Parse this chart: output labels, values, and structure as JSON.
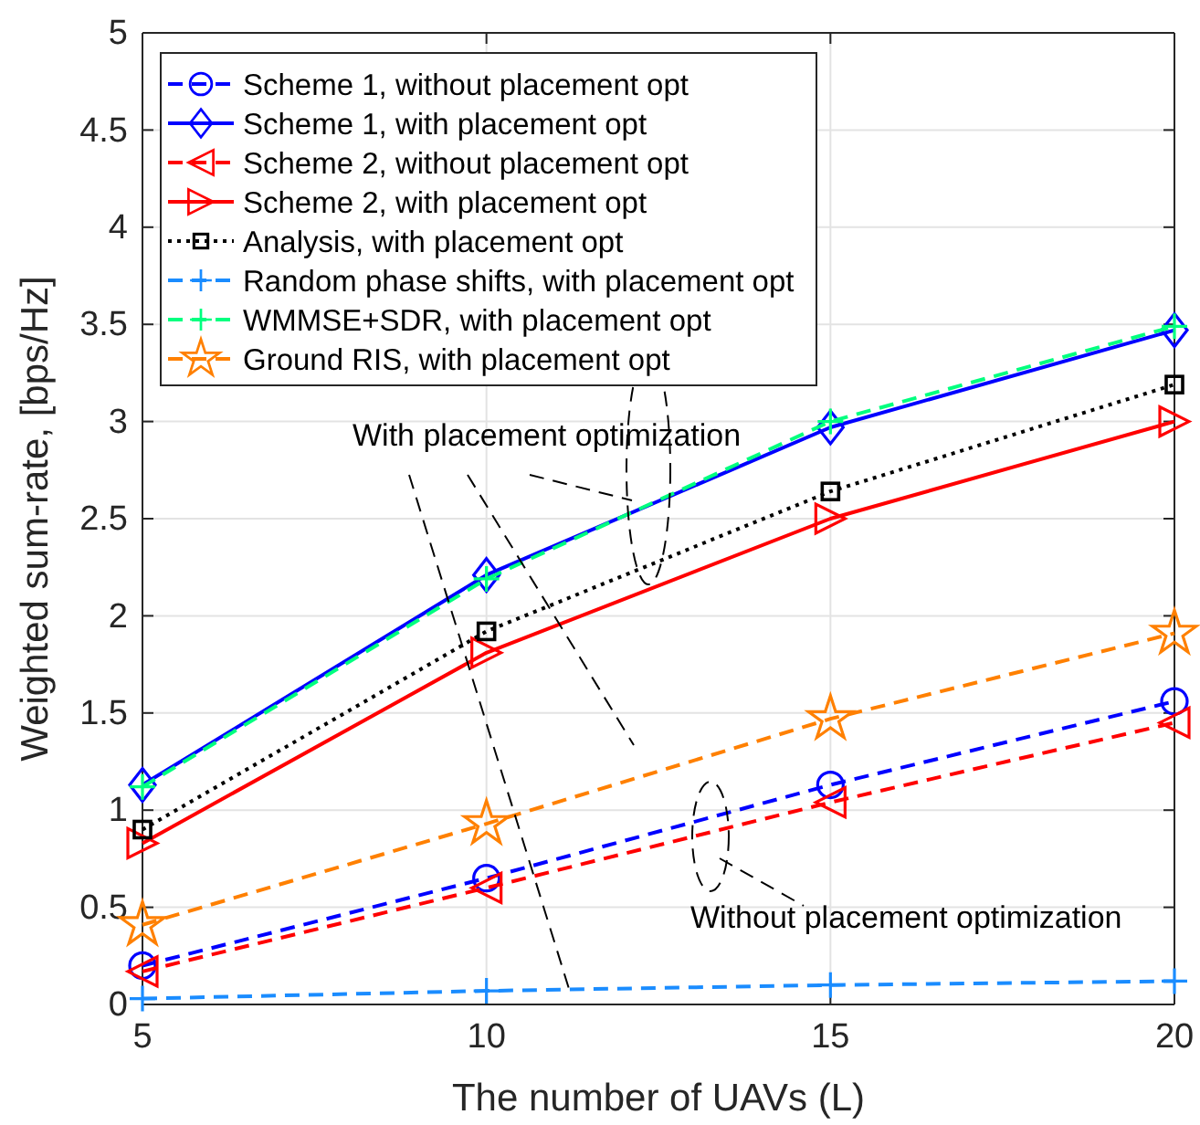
{
  "chart_data": {
    "type": "line",
    "xlabel": "The number of UAVs (L)",
    "ylabel": "Weighted sum-rate, [bps/Hz]",
    "x": [
      5,
      10,
      15,
      20
    ],
    "xlim": [
      5,
      20
    ],
    "xticks": [
      5,
      10,
      15,
      20
    ],
    "ylim": [
      0,
      5
    ],
    "yticks": [
      0,
      0.5,
      1,
      1.5,
      2,
      2.5,
      3,
      3.5,
      4,
      4.5,
      5
    ],
    "grid": true,
    "legend": "top left",
    "annotations": [
      "With placement optimization",
      "Without placement optimization"
    ],
    "series": [
      {
        "name": "Scheme 1, without placement opt",
        "color": "#0000ff",
        "line_style": "dashed",
        "marker": "circle",
        "values": [
          0.2,
          0.65,
          1.13,
          1.56
        ]
      },
      {
        "name": "Scheme 1, with placement opt",
        "color": "#0000ff",
        "line_style": "solid",
        "marker": "diamond",
        "values": [
          1.13,
          2.21,
          2.97,
          3.47
        ]
      },
      {
        "name": "Scheme 2, without placement opt",
        "color": "#ff0000",
        "line_style": "dashed",
        "marker": "triangle",
        "values": [
          0.17,
          0.6,
          1.04,
          1.45
        ]
      },
      {
        "name": "Scheme 2, with placement opt",
        "color": "#ff0000",
        "line_style": "solid",
        "marker": "triangle",
        "values": [
          0.83,
          1.81,
          2.5,
          3.0
        ]
      },
      {
        "name": "Analysis, with placement opt",
        "color": "#000000",
        "line_style": "dotted",
        "marker": "square",
        "values": [
          0.9,
          1.92,
          2.64,
          3.19
        ]
      },
      {
        "name": "Random phase shifts, with placement opt",
        "color": "#1a8cff",
        "line_style": "dashed",
        "marker": "cross",
        "values": [
          0.03,
          0.07,
          0.1,
          0.12
        ]
      },
      {
        "name": "WMMSE+SDR, with placement opt",
        "color": "#00ff7f",
        "line_style": "dashed",
        "marker": "cross",
        "values": [
          1.12,
          2.19,
          3.0,
          3.49
        ]
      },
      {
        "name": "Ground RIS, with placement opt",
        "color": "#ff8000",
        "line_style": "dashed",
        "marker": "star",
        "values": [
          0.41,
          0.93,
          1.47,
          1.91
        ]
      }
    ]
  }
}
